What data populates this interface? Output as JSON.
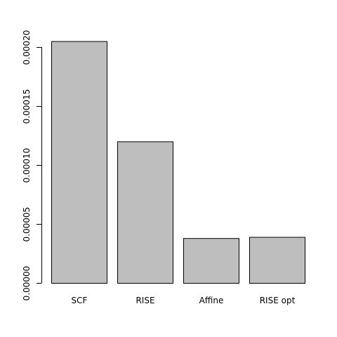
{
  "chart_data": {
    "type": "bar",
    "title": "",
    "xlabel": "",
    "ylabel": "",
    "categories": [
      "SCF",
      "RISE",
      "Affine",
      "RISE opt"
    ],
    "values": [
      0.000205,
      0.00012,
      3.8e-05,
      3.9e-05
    ],
    "ylim": [
      0,
      0.0002
    ],
    "yticks": [
      0,
      5e-05,
      0.0001,
      0.00015,
      0.0002
    ],
    "ytick_labels": [
      "0.00000",
      "0.00005",
      "0.00010",
      "0.00015",
      "0.00020"
    ],
    "grid": false,
    "legend": "none",
    "colors": {
      "bar_fill": "#bebebe",
      "bar_stroke": "#000000",
      "axis": "#000000"
    }
  }
}
